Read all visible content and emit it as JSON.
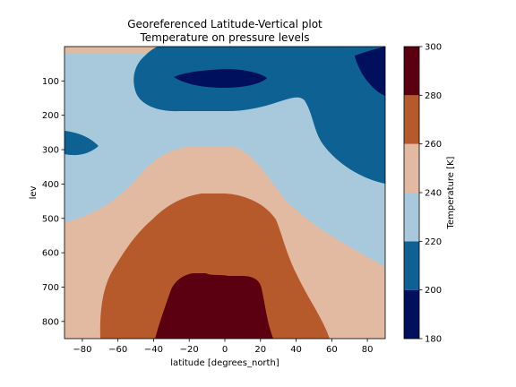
{
  "chart_data": {
    "type": "contourf",
    "title": "Georeferenced Latitude-Vertical plot",
    "subtitle": "Temperature on pressure levels",
    "xlabel": "latitude [degrees_north]",
    "ylabel": "lev",
    "xlim": [
      -90,
      90
    ],
    "ylim": [
      850,
      0
    ],
    "y_inverted": true,
    "xticks": [
      -80,
      -60,
      -40,
      -20,
      0,
      20,
      40,
      60,
      80
    ],
    "yticks": [
      100,
      200,
      300,
      400,
      500,
      600,
      700,
      800
    ],
    "colorbar": {
      "label": "Temperature [K]",
      "levels": [
        180,
        200,
        220,
        240,
        260,
        280,
        300
      ],
      "colors": [
        "#00105c",
        "#0e6193",
        "#a8c9dc",
        "#e2b9a1",
        "#b65a2b",
        "#5b0010"
      ]
    },
    "regions": [
      {
        "level_range": [
          260,
          280
        ],
        "description": "warm band over lower troposphere",
        "approx_x_range": [
          -72,
          58
        ],
        "approx_top_lev": 430
      },
      {
        "level_range": [
          280,
          300
        ],
        "description": "warmest core near surface",
        "approx_x_range": [
          -40,
          26
        ],
        "approx_top_lev": 665
      },
      {
        "level_range": [
          220,
          240
        ],
        "description": "upper troposphere background"
      },
      {
        "level_range": [
          200,
          220
        ],
        "description": "cold upper region / tropopause",
        "approx_x_range": [
          -53,
          90
        ],
        "approx_bottom_lev": 300
      },
      {
        "level_range": [
          180,
          200
        ],
        "description": "coldest pockets",
        "centers": [
          {
            "x": -2,
            "lev": 95
          },
          {
            "x": 85,
            "lev": 60
          }
        ]
      }
    ]
  }
}
